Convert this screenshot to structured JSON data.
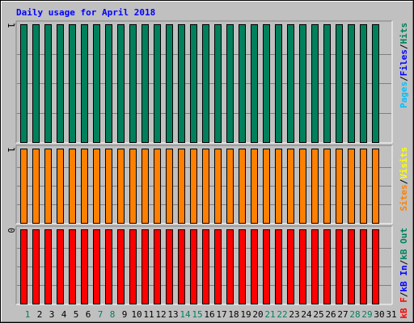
{
  "title": "Daily usage for April 2018",
  "separator": "/",
  "chart_data": [
    {
      "type": "bar",
      "ylim": [
        0,
        1
      ],
      "yticks": [
        1
      ],
      "front_series": 2,
      "series": [
        {
          "name": "Pages",
          "color": "#00c0ff",
          "values": [
            1,
            1,
            1,
            1,
            1,
            1,
            1,
            1,
            1,
            1,
            1,
            1,
            1,
            1,
            1,
            1,
            1,
            1,
            1,
            1,
            1,
            1,
            1,
            1,
            1,
            1,
            1,
            1,
            1,
            1,
            null
          ]
        },
        {
          "name": "Files",
          "color": "#0000ff",
          "values": [
            1,
            1,
            1,
            1,
            1,
            1,
            1,
            1,
            1,
            1,
            1,
            1,
            1,
            1,
            1,
            1,
            1,
            1,
            1,
            1,
            1,
            1,
            1,
            1,
            1,
            1,
            1,
            1,
            1,
            1,
            null
          ]
        },
        {
          "name": "Hits",
          "color": "#00805c",
          "values": [
            1,
            1,
            1,
            1,
            1,
            1,
            1,
            1,
            1,
            1,
            1,
            1,
            1,
            1,
            1,
            1,
            1,
            1,
            1,
            1,
            1,
            1,
            1,
            1,
            1,
            1,
            1,
            1,
            1,
            1,
            null
          ]
        }
      ]
    },
    {
      "type": "bar",
      "ylim": [
        0,
        1
      ],
      "yticks": [
        1
      ],
      "front_series": 0,
      "series": [
        {
          "name": "Sites",
          "color": "#ff8000",
          "values": [
            1,
            1,
            1,
            1,
            1,
            1,
            1,
            1,
            1,
            1,
            1,
            1,
            1,
            1,
            1,
            1,
            1,
            1,
            1,
            1,
            1,
            1,
            1,
            1,
            1,
            1,
            1,
            1,
            1,
            1,
            null
          ]
        },
        {
          "name": "Visits",
          "color": "#ffff00",
          "values": [
            1,
            1,
            1,
            1,
            1,
            1,
            1,
            1,
            1,
            1,
            1,
            1,
            1,
            1,
            1,
            1,
            1,
            1,
            1,
            1,
            1,
            1,
            1,
            1,
            1,
            1,
            1,
            1,
            1,
            1,
            null
          ]
        }
      ]
    },
    {
      "type": "bar",
      "ylim": [
        0,
        0.4
      ],
      "yticks": [
        {
          "value": 0.4,
          "label": "0"
        }
      ],
      "front_series": 0,
      "categories": [
        "1",
        "2",
        "3",
        "4",
        "5",
        "6",
        "7",
        "8",
        "9",
        "10",
        "11",
        "12",
        "13",
        "14",
        "15",
        "16",
        "17",
        "18",
        "19",
        "20",
        "21",
        "22",
        "23",
        "24",
        "25",
        "26",
        "27",
        "28",
        "29",
        "30",
        "31"
      ],
      "category_colors": [
        "#00805c",
        "#000000",
        "#000000",
        "#000000",
        "#000000",
        "#000000",
        "#00805c",
        "#00805c",
        "#000000",
        "#000000",
        "#000000",
        "#000000",
        "#000000",
        "#00805c",
        "#00805c",
        "#000000",
        "#000000",
        "#000000",
        "#000000",
        "#000000",
        "#00805c",
        "#00805c",
        "#000000",
        "#000000",
        "#000000",
        "#000000",
        "#000000",
        "#00805c",
        "#00805c",
        "#000000",
        "#000000"
      ],
      "series": [
        {
          "name": "kB F",
          "color": "#ff0000",
          "values": [
            0.4,
            0.4,
            0.4,
            0.4,
            0.4,
            0.4,
            0.4,
            0.4,
            0.4,
            0.4,
            0.4,
            0.4,
            0.4,
            0.4,
            0.4,
            0.4,
            0.4,
            0.4,
            0.4,
            0.4,
            0.4,
            0.4,
            0.4,
            0.4,
            0.4,
            0.4,
            0.4,
            0.4,
            0.4,
            0.4,
            null
          ]
        },
        {
          "name": "kB In",
          "color": "#0000ff",
          "values": [
            0.4,
            0.4,
            0.4,
            0.4,
            0.4,
            0.4,
            0.4,
            0.4,
            0.4,
            0.4,
            0.4,
            0.4,
            0.4,
            0.4,
            0.4,
            0.4,
            0.4,
            0.4,
            0.4,
            0.4,
            0.4,
            0.4,
            0.4,
            0.4,
            0.4,
            0.4,
            0.4,
            0.4,
            0.4,
            0.4,
            null
          ]
        },
        {
          "name": "kB Out",
          "color": "#00805c",
          "values": [
            0.4,
            0.4,
            0.4,
            0.4,
            0.4,
            0.4,
            0.4,
            0.4,
            0.4,
            0.4,
            0.4,
            0.4,
            0.4,
            0.4,
            0.4,
            0.4,
            0.4,
            0.4,
            0.4,
            0.4,
            0.4,
            0.4,
            0.4,
            0.4,
            0.4,
            0.4,
            0.4,
            0.4,
            0.4,
            0.4,
            null
          ]
        }
      ]
    }
  ]
}
